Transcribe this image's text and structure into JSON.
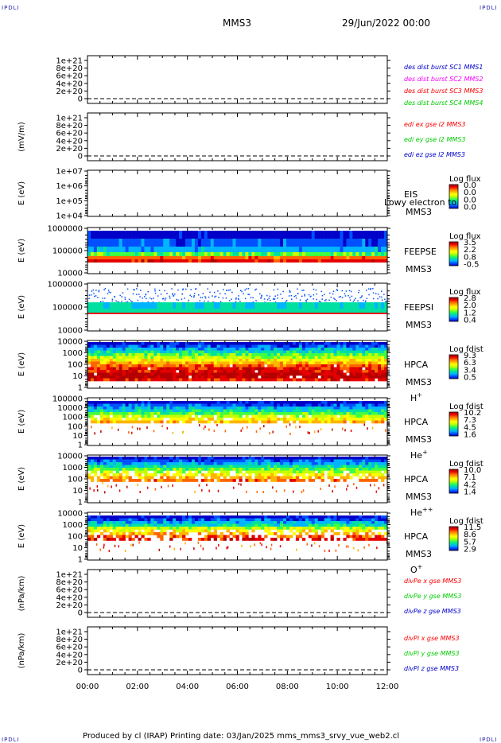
{
  "header": {
    "corner_label": "IPDLI",
    "mission": "MMS3",
    "datetime": "29/Jun/2022 00:00"
  },
  "footer": {
    "credit": "Produced by cl (IRAP)   Printing date: 03/Jan/2025   mms_mms3_srvy_vue_web2.cl"
  },
  "colors": {
    "spectrogram_scale": [
      "#0000c8",
      "#0050ff",
      "#00b4ff",
      "#00e0a0",
      "#40ff40",
      "#c8ff00",
      "#ffff00",
      "#ffb400",
      "#ff6400",
      "#e60000",
      "#b40000"
    ],
    "blue": "#0000cc",
    "magenta": "#ff00ff",
    "red": "#ff0000",
    "green": "#00cc00"
  },
  "chart_data": {
    "type": "heatmap",
    "x_ticks": [
      "00:00",
      "02:00",
      "04:00",
      "06:00",
      "08:00",
      "10:00",
      "12:00"
    ],
    "panels": [
      {
        "kind": "line",
        "ylabel": "",
        "yticks": [
          "1e+21",
          "8e+20",
          "6e+20",
          "4e+20",
          "2e+20",
          "0"
        ],
        "legend": [
          {
            "text": "des dist burst SC1 MMS1",
            "color": "#0000cc"
          },
          {
            "text": "des dist burst SC2 MMS2",
            "color": "#ff00ff"
          },
          {
            "text": "des dist burst SC3 MMS3",
            "color": "#ff0000"
          },
          {
            "text": "des dist burst SC4 MMS4",
            "color": "#00cc00"
          }
        ]
      },
      {
        "kind": "line",
        "ylabel": "(mV/m)",
        "yticks": [
          "1e+21",
          "8e+20",
          "6e+20",
          "4e+20",
          "2e+20",
          "0"
        ],
        "legend": [
          {
            "text": "edi ex gse l2 MMS3",
            "color": "#ff0000"
          },
          {
            "text": "edi ey gse l2 MMS3",
            "color": "#00cc00"
          },
          {
            "text": "edi ez gse l2 MMS3",
            "color": "#0000cc"
          }
        ]
      },
      {
        "kind": "spec",
        "ylabel": "E (eV)",
        "yticks": [
          "1e+07",
          "1e+06",
          "1e+05",
          "1e+04"
        ],
        "instrument": "EIS",
        "overlay": "Lowy electron to",
        "sc": "MMS3",
        "species": "",
        "cb_title": "Log flux",
        "cb_ticks": [
          "0.0",
          "0.0",
          "0.0",
          "0.0"
        ],
        "style": "empty"
      },
      {
        "kind": "spec",
        "ylabel": "E (eV)",
        "yticks": [
          "1000000",
          "100000",
          "10000"
        ],
        "instrument": "FEEPSE",
        "sc": "MMS3",
        "species": "",
        "cb_title": "Log flux",
        "cb_ticks": [
          "3.5",
          "2.2",
          "0.8",
          "-0.5"
        ],
        "style": "feepse"
      },
      {
        "kind": "spec",
        "ylabel": "E (eV)",
        "yticks": [
          "1000000",
          "100000",
          "10000"
        ],
        "instrument": "FEEPSI",
        "sc": "MMS3",
        "species": "",
        "cb_title": "Log flux",
        "cb_ticks": [
          "2.8",
          "2.0",
          "1.2",
          "0.4"
        ],
        "style": "feepsi"
      },
      {
        "kind": "spec",
        "ylabel": "E (eV)",
        "yticks": [
          "10000",
          "1000",
          "100",
          "10",
          "1"
        ],
        "instrument": "HPCA",
        "sc": "MMS3",
        "species": "H",
        "sup": "+",
        "cb_title": "Log fdist",
        "cb_ticks": [
          "9.3",
          "6.3",
          "3.4",
          "0.5"
        ],
        "style": "hplus"
      },
      {
        "kind": "spec",
        "ylabel": "E (eV)",
        "yticks": [
          "100000",
          "10000",
          "1000",
          "100",
          "10",
          "1"
        ],
        "instrument": "HPCA",
        "sc": "MMS3",
        "species": "He",
        "sup": "+",
        "cb_title": "Log fdist",
        "cb_ticks": [
          "10.2",
          "7.3",
          "4.5",
          "1.6"
        ],
        "style": "heplus"
      },
      {
        "kind": "spec",
        "ylabel": "E (eV)",
        "yticks": [
          "10000",
          "1000",
          "100",
          "10",
          "1"
        ],
        "instrument": "HPCA",
        "sc": "MMS3",
        "species": "He",
        "sup": "++",
        "cb_title": "Log fdist",
        "cb_ticks": [
          "10.0",
          "7.1",
          "4.2",
          "1.4"
        ],
        "style": "hepp"
      },
      {
        "kind": "spec",
        "ylabel": "E (eV)",
        "yticks": [
          "10000",
          "1000",
          "100",
          "10",
          "1"
        ],
        "instrument": "HPCA",
        "sc": "MMS3",
        "species": "O",
        "sup": "+",
        "cb_title": "Log fdist",
        "cb_ticks": [
          "11.5",
          "8.6",
          "5.7",
          "2.9"
        ],
        "style": "oplus"
      },
      {
        "kind": "line",
        "ylabel": "(nPa/km)",
        "yticks": [
          "1e+21",
          "8e+20",
          "6e+20",
          "4e+20",
          "2e+20",
          "0"
        ],
        "legend": [
          {
            "text": "divPe x gse MMS3",
            "color": "#ff0000"
          },
          {
            "text": "divPe y gse MMS3",
            "color": "#00cc00"
          },
          {
            "text": "divPe z gse MMS3",
            "color": "#0000cc"
          }
        ]
      },
      {
        "kind": "line",
        "ylabel": "(nPa/km)",
        "yticks": [
          "1e+21",
          "8e+20",
          "6e+20",
          "4e+20",
          "2e+20",
          "0"
        ],
        "legend": [
          {
            "text": "divPi x gse MMS3",
            "color": "#ff0000"
          },
          {
            "text": "divPi y gse MMS3",
            "color": "#00cc00"
          },
          {
            "text": "divPi z gse MMS3",
            "color": "#0000cc"
          }
        ]
      }
    ]
  }
}
